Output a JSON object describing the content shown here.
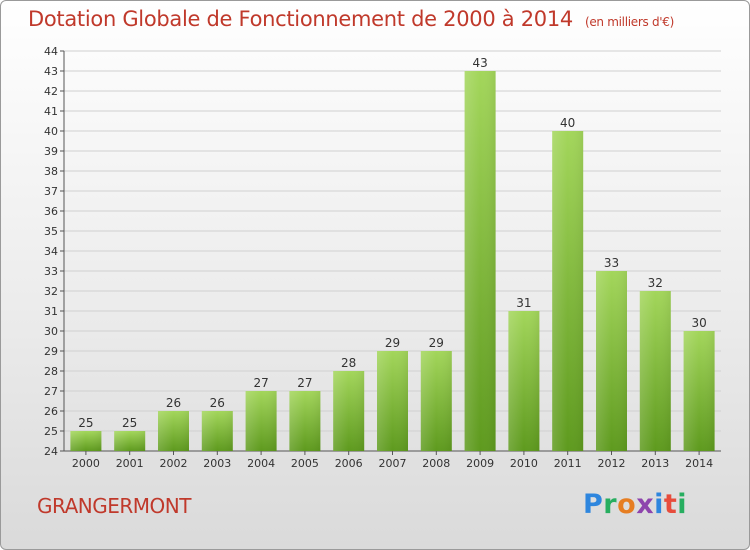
{
  "title": "Dotation Globale de Fonctionnement de 2000 à 2014",
  "subtitle": "(en milliers d'€)",
  "place_name": "GRANGERMONT",
  "logo": {
    "letters": [
      "P",
      "r",
      "o",
      "x",
      "i",
      "t",
      "i"
    ],
    "colors": [
      "#2e86de",
      "#27ae60",
      "#e67e22",
      "#8e44ad",
      "#2e86de",
      "#e74c3c",
      "#27ae60"
    ]
  },
  "colors": {
    "title": "#c0392b",
    "bar_top": "#a3d65b",
    "bar_bottom": "#5e9a1e",
    "grid": "#d0d0d0"
  },
  "chart_data": {
    "type": "bar",
    "categories": [
      "2000",
      "2001",
      "2002",
      "2003",
      "2004",
      "2005",
      "2006",
      "2007",
      "2008",
      "2009",
      "2010",
      "2011",
      "2012",
      "2013",
      "2014"
    ],
    "values": [
      25,
      25,
      26,
      26,
      27,
      27,
      28,
      29,
      29,
      43,
      31,
      40,
      33,
      32,
      30
    ],
    "title": "Dotation Globale de Fonctionnement de 2000 à 2014",
    "subtitle": "(en milliers d'€)",
    "xlabel": "",
    "ylabel": "",
    "ylim": [
      24,
      44
    ],
    "yticks": [
      24,
      25,
      26,
      27,
      28,
      29,
      30,
      31,
      32,
      33,
      34,
      35,
      36,
      37,
      38,
      39,
      40,
      41,
      42,
      43,
      44
    ],
    "grid": true,
    "legend": "none"
  }
}
